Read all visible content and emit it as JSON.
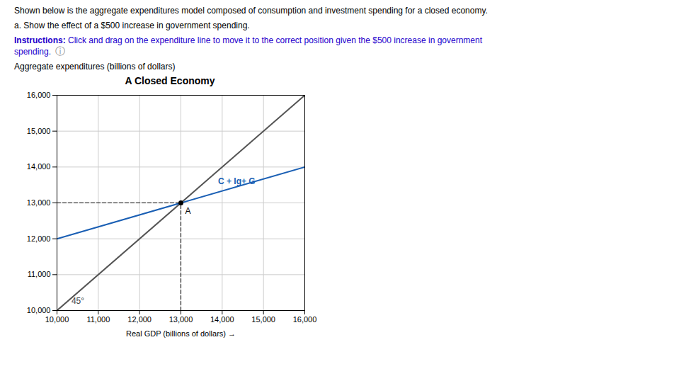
{
  "chart_data": {
    "type": "line",
    "title": "A Closed Economy",
    "text_above": [
      "Shown below is the aggregate expenditures model composed of consumption and investment spending for a closed economy.",
      "a. Show the effect of a $500 increase in government spending."
    ],
    "instructions": {
      "bold": "Instructions:",
      "text": " Click and drag on the expenditure line to move it to the correct position given the $500 increase in government\nspending.",
      "color": "#2200cc"
    },
    "info_icon": "ⓘ",
    "xlabel": "Real GDP (billions of dollars)",
    "ylabel": "Aggregate expenditures (billions of dollars)",
    "xlim": [
      10000,
      16000
    ],
    "ylim": [
      10000,
      16000
    ],
    "xticks": [
      {
        "value": 10000,
        "label": "10,000"
      },
      {
        "value": 11000,
        "label": "11,000"
      },
      {
        "value": 12000,
        "label": "12,000"
      },
      {
        "value": 13000,
        "label": "13,000"
      },
      {
        "value": 14000,
        "label": "14,000"
      },
      {
        "value": 15000,
        "label": "15,000"
      },
      {
        "value": 16000,
        "label": "16,000"
      }
    ],
    "yticks": [
      {
        "value": 10000,
        "label": "10,000"
      },
      {
        "value": 11000,
        "label": "11,000"
      },
      {
        "value": 12000,
        "label": "12,000"
      },
      {
        "value": 13000,
        "label": "13,000"
      },
      {
        "value": 14000,
        "label": "14,000"
      },
      {
        "value": 15000,
        "label": "15,000"
      },
      {
        "value": 16000,
        "label": "16,000"
      }
    ],
    "grid": true,
    "series": [
      {
        "x": [
          10000,
          16000
        ],
        "values": [
          10000,
          16000
        ],
        "color": "#555555"
      },
      {
        "x": [
          10000,
          16000
        ],
        "values": [
          12000,
          14000
        ],
        "color": "#1a5fb4"
      }
    ],
    "points": [
      {
        "x": 13000,
        "y": 13000,
        "label": "A",
        "color": "#000000",
        "line_style": "dashed"
      }
    ],
    "annotations": [
      {
        "text": "45°",
        "x": 10350,
        "y": 10180,
        "color": "#444444"
      },
      {
        "text": "C + Ig+ G",
        "x": 13900,
        "y": 13530,
        "color": "#1a5fb4"
      }
    ]
  }
}
